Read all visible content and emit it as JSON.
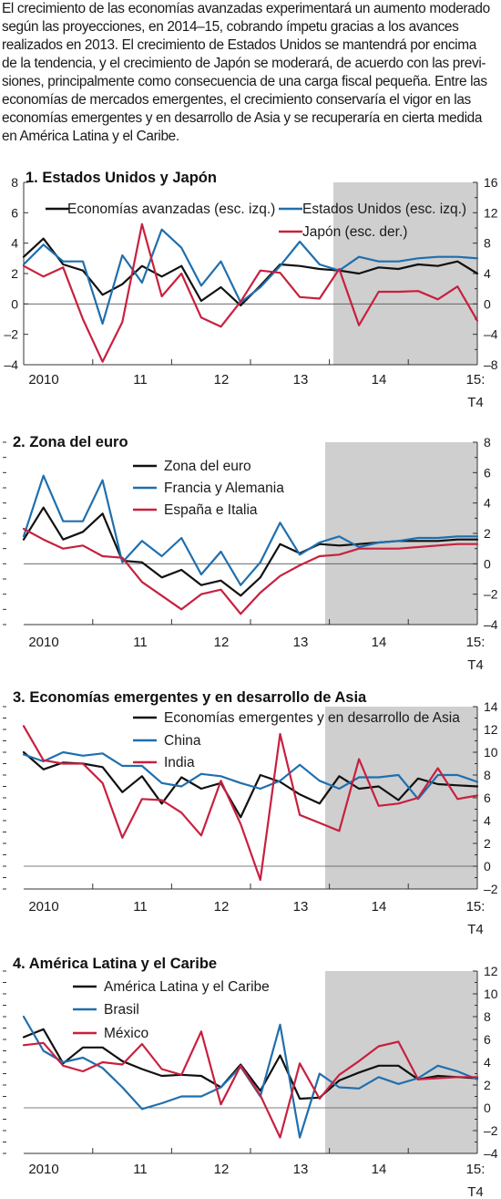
{
  "intro_lines": [
    "El crecimiento de las economías avanzadas experimentará un aumento moderado",
    "según las proyecciones, en 2014–15, cobrando ímpetu gracias a los avances",
    "realizados en 2013. El crecimiento de Estados Unidos se mantendrá por encima",
    "de la tendencia, y el crecimiento de Japón se moderará, de acuerdo con las previ-",
    "siones, principalmente como consecuencia de una carga fiscal pequeña. Entre las",
    "economías de mercados emergentes, el crecimiento conservaría el vigor en las",
    "economías emergentes y en desarrollo de Asia y se recuperaría en cierta medida",
    "en América Latina y el Caribe."
  ],
  "colors": {
    "black": "#111111",
    "blue": "#1f6fae",
    "red": "#c8203f",
    "shade": "#cfcfcf",
    "axis": "#333333"
  },
  "chart_data": [
    {
      "type": "line",
      "title": "1. Estados Unidos y Japón",
      "x_labels": [
        "2010",
        "11",
        "12",
        "13",
        "14",
        "15:",
        "T4"
      ],
      "left_axis": {
        "ylim": [
          -4,
          8
        ],
        "ticks": [
          "8",
          "6",
          "4",
          "2",
          "0",
          "–2",
          "–4"
        ]
      },
      "right_axis": {
        "ylim": [
          -8,
          16
        ],
        "ticks": [
          "16",
          "12",
          "8",
          "4",
          "0",
          "–4",
          "–8"
        ]
      },
      "projection_start_index": 16,
      "series": [
        {
          "name": "Economías avanzadas (esc. izq.)",
          "color": "black",
          "axis": "left",
          "values": [
            3.1,
            4.3,
            2.6,
            2.2,
            0.6,
            1.3,
            2.5,
            1.8,
            2.5,
            0.2,
            1.1,
            -0.1,
            1.2,
            2.6,
            2.5,
            2.3,
            2.2,
            2.0,
            2.4,
            2.3,
            2.6,
            2.5,
            2.8,
            2.0
          ]
        },
        {
          "name": "Estados Unidos (esc. izq.)",
          "color": "blue",
          "axis": "left",
          "values": [
            2.6,
            3.9,
            2.8,
            2.8,
            -1.3,
            3.2,
            1.4,
            4.9,
            3.7,
            1.2,
            2.8,
            0.1,
            1.1,
            2.5,
            4.1,
            2.6,
            2.2,
            3.1,
            2.8,
            2.8,
            3.0,
            3.1,
            3.1,
            3.0
          ]
        },
        {
          "name": "Japón (esc. der.)",
          "color": "red",
          "axis": "right",
          "values": [
            5.0,
            3.6,
            4.8,
            -2.0,
            -7.6,
            -2.4,
            10.5,
            1.0,
            4.0,
            -1.8,
            -3.0,
            0.3,
            4.4,
            4.1,
            0.9,
            0.7,
            4.6,
            -2.8,
            1.6,
            1.6,
            1.7,
            0.6,
            2.3,
            -2.2
          ]
        }
      ]
    },
    {
      "type": "line",
      "title": "2. Zona del euro",
      "x_labels": [
        "2010",
        "11",
        "12",
        "13",
        "14",
        "15:",
        "T4"
      ],
      "right_axis": {
        "ylim": [
          -4,
          8
        ],
        "ticks": [
          "8",
          "6",
          "4",
          "2",
          "0",
          "–2",
          "–4"
        ]
      },
      "projection_start_index": 16,
      "series": [
        {
          "name": "Zona del euro",
          "color": "black",
          "axis": "right",
          "values": [
            1.6,
            3.7,
            1.6,
            2.1,
            3.3,
            0.2,
            0.1,
            -0.9,
            -0.4,
            -1.4,
            -1.1,
            -2.1,
            -0.9,
            1.3,
            0.7,
            1.3,
            1.2,
            1.3,
            1.4,
            1.5,
            1.5,
            1.5,
            1.6,
            1.6
          ]
        },
        {
          "name": "Francia y Alemania",
          "color": "blue",
          "axis": "right",
          "values": [
            1.8,
            5.8,
            2.8,
            2.8,
            5.5,
            0.1,
            1.5,
            0.5,
            1.7,
            -0.7,
            0.8,
            -1.4,
            0.1,
            2.7,
            0.6,
            1.4,
            1.8,
            1.1,
            1.4,
            1.5,
            1.7,
            1.7,
            1.8,
            1.8
          ]
        },
        {
          "name": "España e Italia",
          "color": "red",
          "axis": "right",
          "values": [
            2.3,
            1.6,
            1.0,
            1.2,
            0.5,
            0.4,
            -1.2,
            -2.1,
            -3.0,
            -2.0,
            -1.7,
            -3.3,
            -1.9,
            -0.8,
            -0.1,
            0.5,
            0.6,
            1.0,
            1.0,
            1.0,
            1.1,
            1.2,
            1.3,
            1.3
          ]
        }
      ]
    },
    {
      "type": "line",
      "title": "3. Economías emergentes y en desarrollo de Asia",
      "x_labels": [
        "2010",
        "11",
        "12",
        "13",
        "14",
        "15:",
        "T4"
      ],
      "right_axis": {
        "ylim": [
          -2,
          14
        ],
        "ticks": [
          "14",
          "12",
          "10",
          "8",
          "6",
          "4",
          "2",
          "0",
          "–2"
        ]
      },
      "projection_start_index": 16,
      "series": [
        {
          "name": "Economías emergentes y en desarrollo de Asia",
          "color": "black",
          "axis": "right",
          "values": [
            10.0,
            8.5,
            9.1,
            9.0,
            8.7,
            6.5,
            7.9,
            5.5,
            7.8,
            6.8,
            7.3,
            4.3,
            8.0,
            7.4,
            6.3,
            5.5,
            7.9,
            6.8,
            7.0,
            5.8,
            7.7,
            7.2,
            7.1,
            7.0
          ]
        },
        {
          "name": "China",
          "color": "blue",
          "axis": "right",
          "values": [
            9.8,
            9.2,
            10.0,
            9.7,
            9.9,
            8.8,
            8.8,
            7.3,
            7.0,
            8.1,
            7.9,
            7.3,
            6.8,
            7.5,
            8.9,
            7.5,
            6.8,
            7.8,
            7.8,
            8.0,
            5.9,
            8.0,
            8.0,
            7.4
          ]
        },
        {
          "name": "India",
          "color": "red",
          "axis": "right",
          "values": [
            12.3,
            9.3,
            9.0,
            9.0,
            7.3,
            2.5,
            5.9,
            5.8,
            4.7,
            2.7,
            7.5,
            3.7,
            -1.2,
            11.6,
            4.5,
            3.8,
            3.1,
            9.4,
            5.3,
            5.5,
            6.0,
            8.6,
            5.9,
            6.2
          ]
        }
      ]
    },
    {
      "type": "line",
      "title": "4.  América Latina y el Caribe",
      "x_labels": [
        "2010",
        "11",
        "12",
        "13",
        "14",
        "15:",
        "T4"
      ],
      "right_axis": {
        "ylim": [
          -4,
          12
        ],
        "ticks": [
          "12",
          "10",
          "8",
          "6",
          "4",
          "2",
          "0",
          "–2",
          "–4"
        ]
      },
      "projection_start_index": 16,
      "series": [
        {
          "name": "América Latina y el Caribe",
          "color": "black",
          "axis": "right",
          "values": [
            6.2,
            6.9,
            3.9,
            5.3,
            5.3,
            4.1,
            3.4,
            2.8,
            2.9,
            2.8,
            1.8,
            3.8,
            1.5,
            4.6,
            0.8,
            0.9,
            2.4,
            3.1,
            3.7,
            3.7,
            2.5,
            2.8,
            2.7,
            2.6
          ]
        },
        {
          "name": "Brasil",
          "color": "blue",
          "axis": "right",
          "values": [
            8.0,
            5.0,
            4.0,
            4.4,
            3.5,
            1.8,
            -0.1,
            0.4,
            1.0,
            1.0,
            1.8,
            3.6,
            1.0,
            7.3,
            -2.6,
            3.0,
            1.8,
            1.7,
            2.7,
            2.1,
            2.6,
            3.7,
            3.2,
            2.5
          ]
        },
        {
          "name": "México",
          "color": "red",
          "axis": "right",
          "values": [
            5.5,
            5.7,
            3.7,
            3.2,
            4.0,
            3.8,
            5.6,
            3.4,
            2.9,
            6.7,
            0.3,
            3.7,
            1.1,
            -2.6,
            3.9,
            0.8,
            2.9,
            4.1,
            5.4,
            5.8,
            2.5,
            2.6,
            2.7,
            2.7
          ]
        }
      ]
    }
  ]
}
